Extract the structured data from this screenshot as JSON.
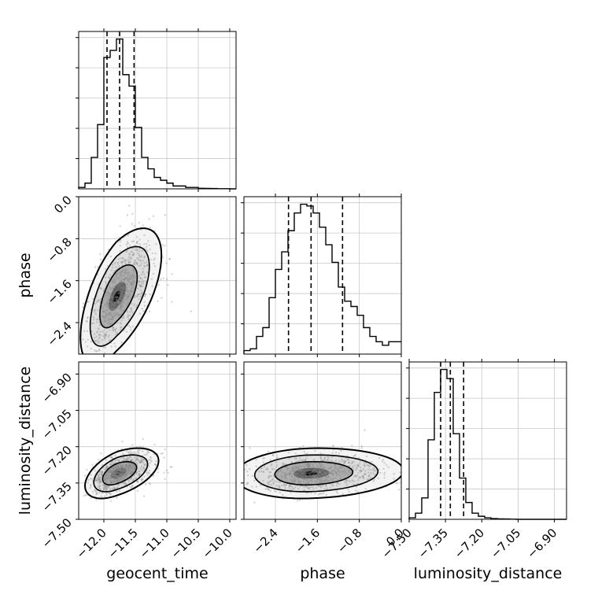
{
  "chart_data": {
    "type": "corner",
    "parameters": [
      {
        "name": "geocent_time",
        "label": "geocent_time",
        "range": [
          -12.4,
          -9.9
        ],
        "ticks": [
          -12.0,
          -11.5,
          -11.0,
          -10.5,
          -10.0
        ],
        "tick_labels": [
          "−12.0",
          "−11.5",
          "−11.0",
          "−10.5",
          "−10.0"
        ]
      },
      {
        "name": "phase",
        "label": "phase",
        "range": [
          -3.0,
          0.0
        ],
        "ticks": [
          -2.4,
          -1.6,
          -0.8,
          0.0
        ],
        "tick_labels": [
          "−2.4",
          "−1.6",
          "−0.8",
          "0.0"
        ]
      },
      {
        "name": "luminosity_distance",
        "label": "luminosity_distance",
        "range": [
          -7.5,
          -6.85
        ],
        "ticks": [
          -7.5,
          -7.35,
          -7.2,
          -7.05,
          -6.9
        ],
        "tick_labels": [
          "−7.50",
          "−7.35",
          "−7.20",
          "−7.05",
          "−6.90"
        ]
      }
    ],
    "quantiles": {
      "geocent_time": [
        -11.95,
        -11.75,
        -11.52
      ],
      "phase": [
        -2.15,
        -1.72,
        -1.12
      ],
      "luminosity_distance": [
        -7.37,
        -7.33,
        -7.275
      ]
    },
    "histograms": {
      "geocent_time": {
        "edges": [
          -12.4,
          -12.3,
          -12.2,
          -12.1,
          -12.0,
          -11.9,
          -11.8,
          -11.7,
          -11.6,
          -11.5,
          -11.4,
          -11.3,
          -11.2,
          -11.1,
          -11.0,
          -10.9,
          -10.8,
          -10.7,
          -10.6,
          -10.5,
          -10.4,
          -10.3,
          -10.2,
          -10.1,
          -10.0,
          -9.9
        ],
        "counts": [
          1,
          4,
          22,
          45,
          92,
          97,
          105,
          80,
          72,
          43,
          22,
          14,
          8,
          6,
          4,
          2,
          2,
          1,
          1,
          0.4,
          0.3,
          0.2,
          0.1,
          0.1,
          0
        ]
      },
      "phase": {
        "edges": [
          -3.0,
          -2.88,
          -2.76,
          -2.64,
          -2.52,
          -2.4,
          -2.28,
          -2.16,
          -2.04,
          -1.92,
          -1.8,
          -1.68,
          -1.56,
          -1.44,
          -1.32,
          -1.2,
          -1.08,
          -0.96,
          -0.84,
          -0.72,
          -0.6,
          -0.48,
          -0.36,
          -0.24,
          -0.12,
          0.0
        ],
        "counts": [
          2,
          3,
          10,
          15,
          32,
          48,
          58,
          70,
          80,
          85,
          84,
          80,
          72,
          62,
          52,
          38,
          30,
          27,
          22,
          15,
          10,
          7,
          5,
          7,
          7
        ]
      },
      "luminosity_distance": {
        "edges": [
          -7.5,
          -7.474,
          -7.448,
          -7.422,
          -7.396,
          -7.37,
          -7.344,
          -7.318,
          -7.292,
          -7.266,
          -7.24,
          -7.214,
          -7.188,
          -7.162,
          -7.136,
          -7.11,
          -7.084,
          -7.058,
          -7.032,
          -7.006,
          -6.98,
          -6.954,
          -6.928,
          -6.902,
          -6.876,
          -6.85
        ],
        "counts": [
          1,
          4,
          14,
          52,
          83,
          98,
          92,
          56,
          27,
          11,
          4,
          2,
          1,
          0.5,
          0.3,
          0.2,
          0.1,
          0,
          0,
          0,
          0,
          0,
          0,
          0,
          0
        ]
      }
    },
    "samples_2d": {
      "geocent_time_phase": {
        "mean": [
          -11.8,
          -1.9
        ],
        "std": [
          0.22,
          0.5
        ],
        "corr": 0.6
      },
      "geocent_time_luminosity_distance": {
        "mean": [
          -11.78,
          -7.31
        ],
        "std": [
          0.2,
          0.04
        ],
        "corr": 0.5
      },
      "phase_luminosity_distance": {
        "mean": [
          -1.75,
          -7.31
        ],
        "std": [
          0.55,
          0.04
        ],
        "corr": 0.1
      }
    },
    "grid": true
  }
}
